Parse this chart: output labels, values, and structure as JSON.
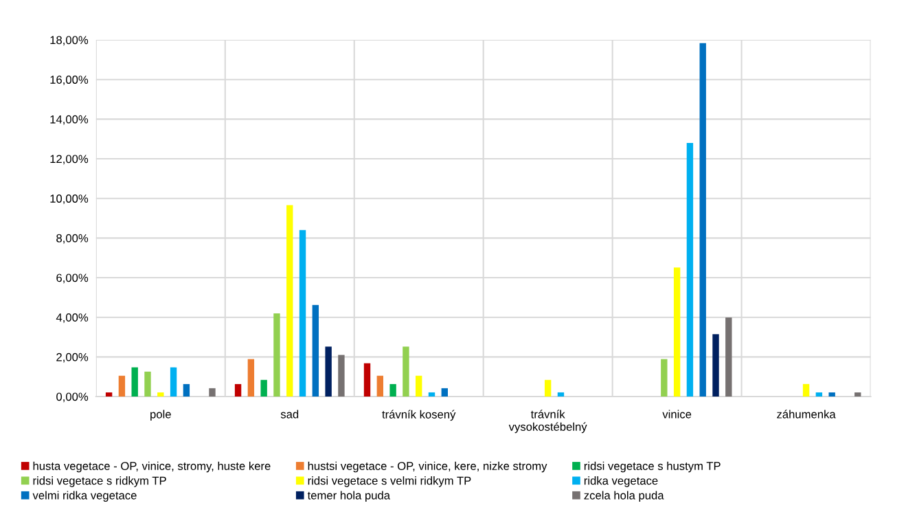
{
  "chart_data": {
    "type": "bar",
    "categories": [
      "pole",
      "sad",
      "trávník kosený",
      "trávník\nvysokostébelný",
      "vinice",
      "záhumenka"
    ],
    "series": [
      {
        "name": "husta vegetace - OP, vinice, stromy, huste kere",
        "color": "#c00000",
        "values": [
          0.21,
          0.63,
          1.68,
          0,
          0,
          0
        ]
      },
      {
        "name": "hustsi vegetace - OP, vinice, kere, nizke stromy",
        "color": "#ed7d31",
        "values": [
          1.05,
          1.89,
          1.05,
          0,
          0,
          0
        ]
      },
      {
        "name": "ridsi vegetace s hustym TP",
        "color": "#00b050",
        "values": [
          1.47,
          0.84,
          0.63,
          0,
          0,
          0
        ]
      },
      {
        "name": "ridsi vegetace s ridkym TP",
        "color": "#92d050",
        "values": [
          1.26,
          4.2,
          2.52,
          0,
          1.89,
          0
        ]
      },
      {
        "name": "ridsi vegetace s velmi ridkym TP",
        "color": "#ffff00",
        "values": [
          0.21,
          9.66,
          1.05,
          0.84,
          6.51,
          0.63
        ]
      },
      {
        "name": "ridka vegetace",
        "color": "#00b0f0",
        "values": [
          1.47,
          8.4,
          0.21,
          0.21,
          12.8,
          0.21
        ]
      },
      {
        "name": "velmi ridka vegetace",
        "color": "#0070c0",
        "values": [
          0.63,
          4.62,
          0.42,
          0,
          17.84,
          0.21
        ]
      },
      {
        "name": "temer hola puda",
        "color": "#002060",
        "values": [
          0,
          2.52,
          0,
          0,
          3.15,
          0
        ]
      },
      {
        "name": "zcela hola puda",
        "color": "#767171",
        "values": [
          0.42,
          2.1,
          0,
          0,
          3.99,
          0.21
        ]
      }
    ],
    "ylim": [
      0,
      18
    ],
    "yticks": [
      {
        "value": 0,
        "label": "0,00%"
      },
      {
        "value": 2,
        "label": "2,00%"
      },
      {
        "value": 4,
        "label": "4,00%"
      },
      {
        "value": 6,
        "label": "6,00%"
      },
      {
        "value": 8,
        "label": "8,00%"
      },
      {
        "value": 10,
        "label": "10,00%"
      },
      {
        "value": 12,
        "label": "12,00%"
      },
      {
        "value": 14,
        "label": "14,00%"
      },
      {
        "value": 16,
        "label": "16,00%"
      },
      {
        "value": 18,
        "label": "18,00%"
      }
    ],
    "grid": true,
    "legend": "bottom"
  }
}
